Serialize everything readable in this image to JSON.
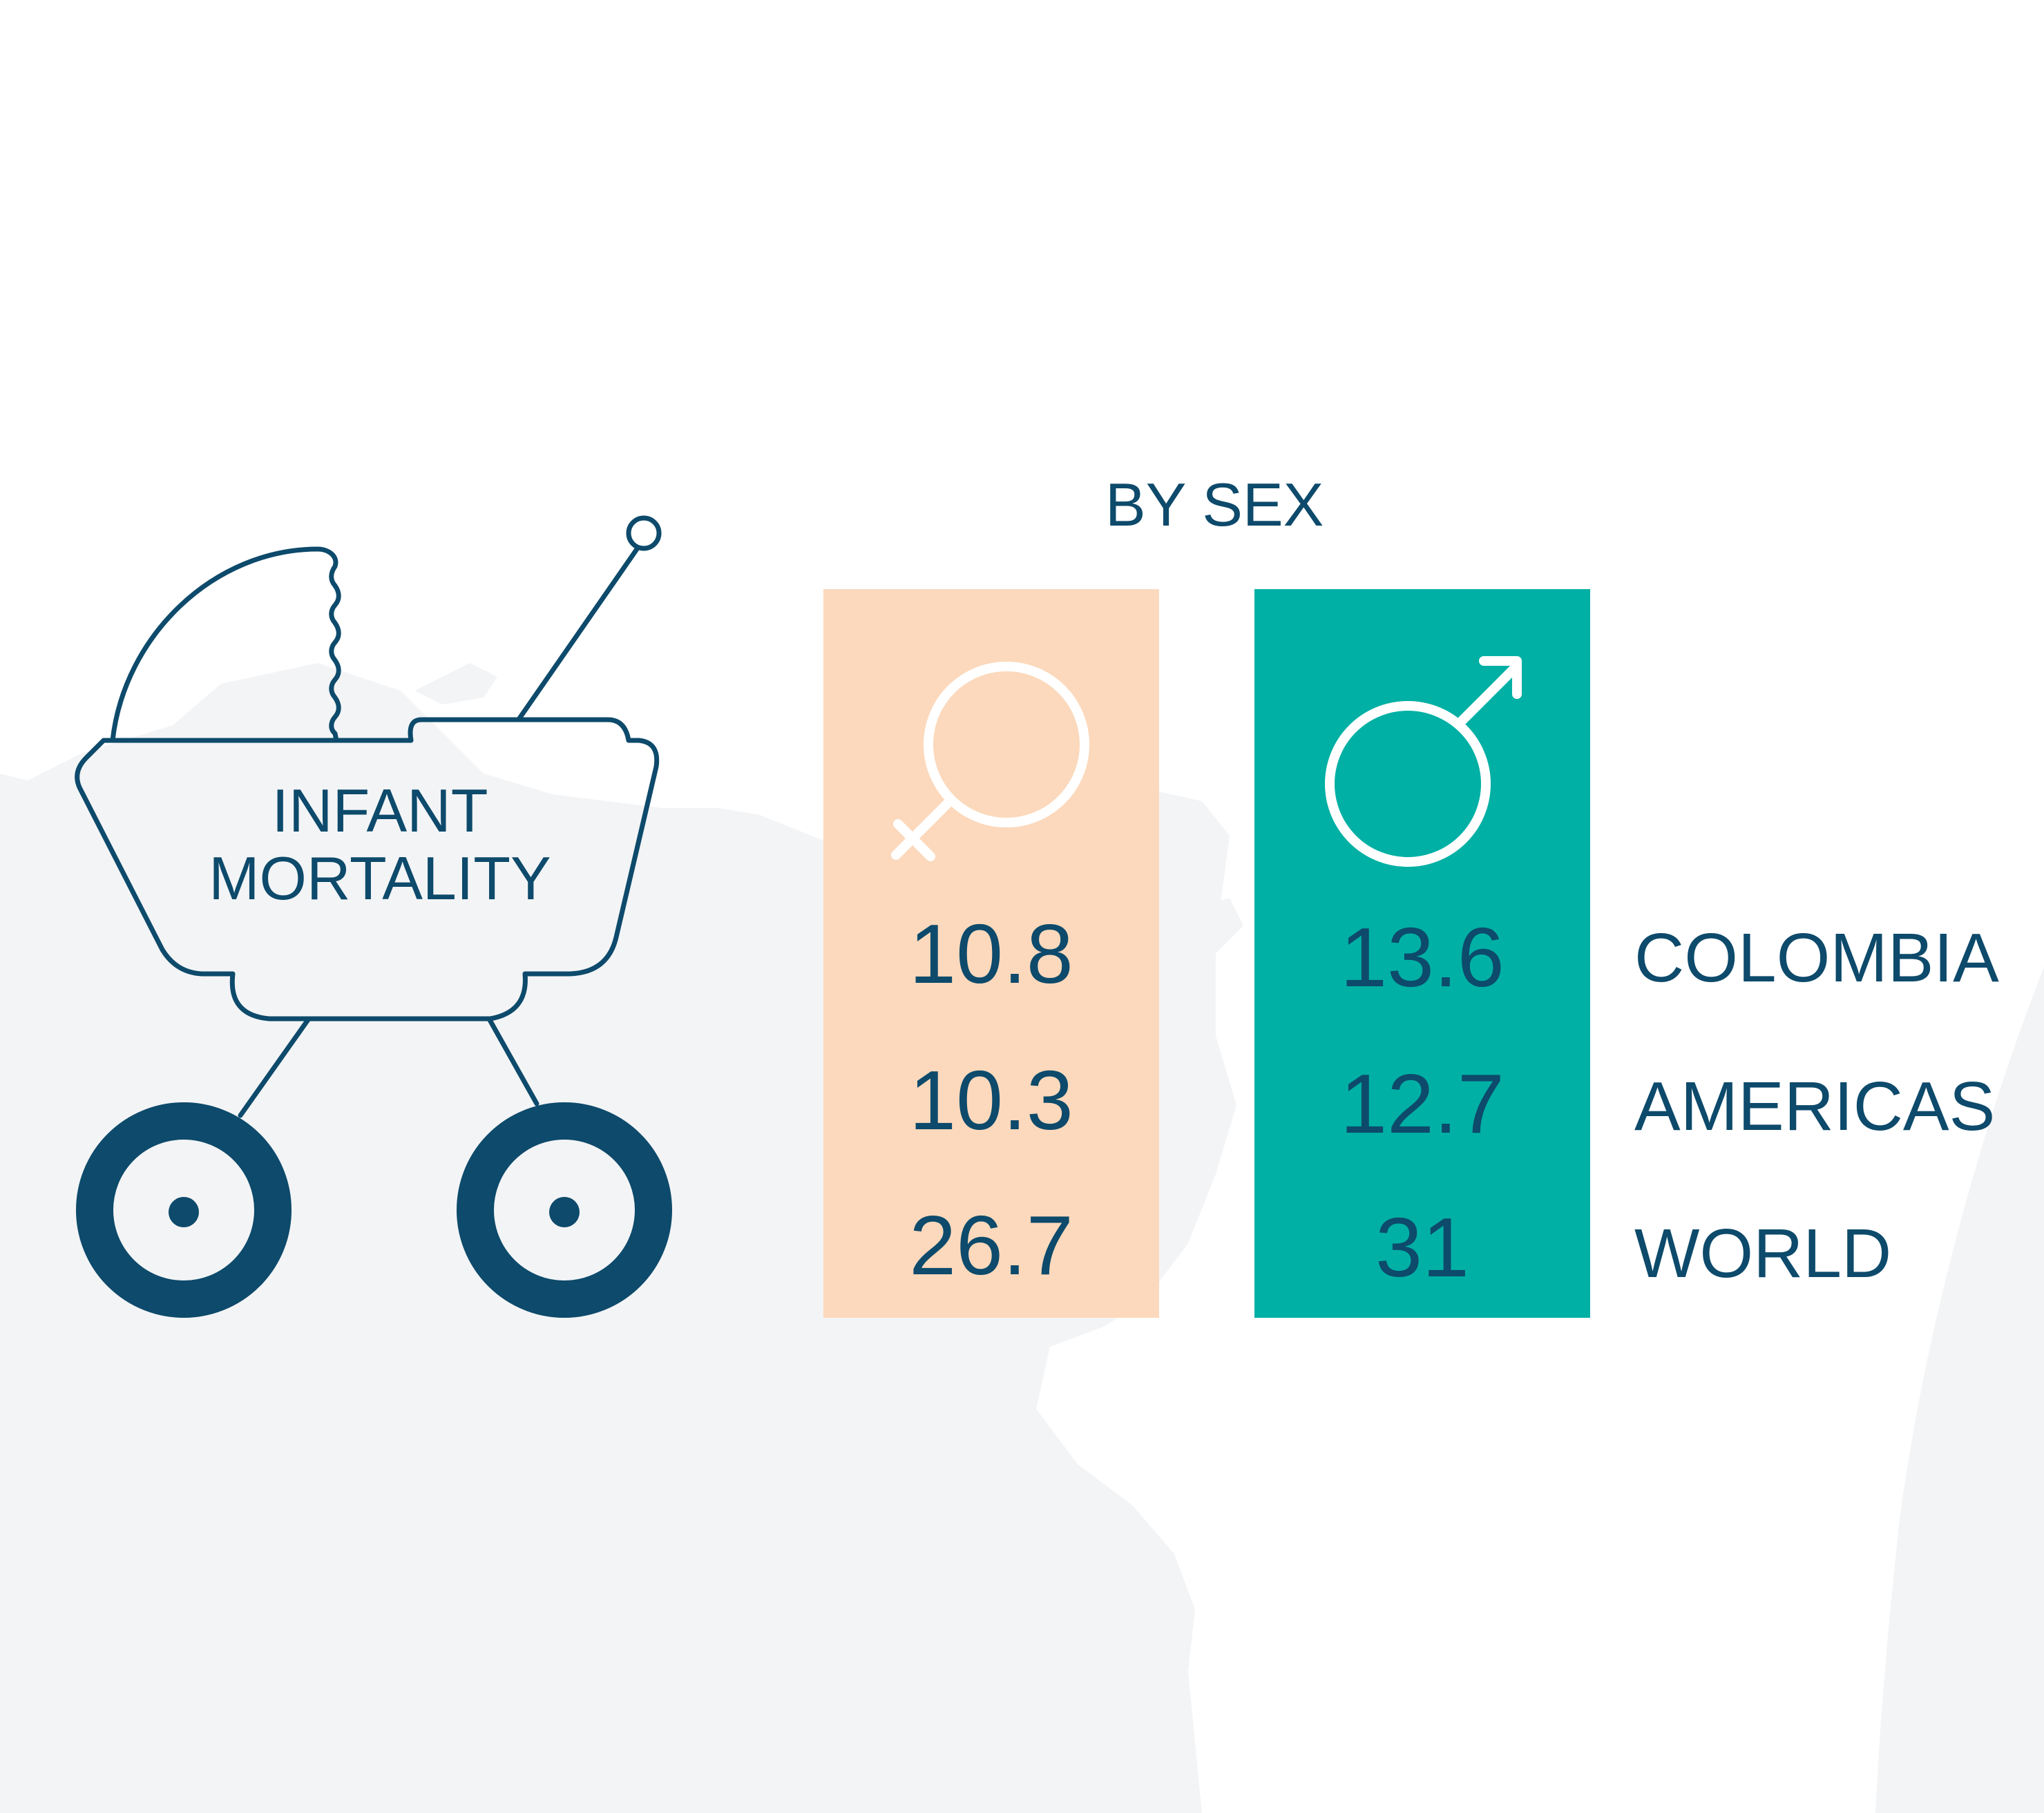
{
  "title": "INFANT MORTALITY",
  "subtitle": "BY SEX",
  "colors": {
    "navy": "#0d4a6b",
    "female_panel": "#fcd9bc",
    "male_panel": "#00b0a4",
    "map": "#f3f4f6"
  },
  "icons": {
    "stroller": "baby-stroller-icon",
    "female": "female-symbol-icon",
    "male": "male-symbol-icon"
  },
  "female_values": [
    "10.8",
    "10.3",
    "26.7"
  ],
  "male_values": [
    "13.6",
    "12.7",
    "31"
  ],
  "regions": [
    "COLOMBIA",
    "AMERICAS",
    "WORLD"
  ]
}
